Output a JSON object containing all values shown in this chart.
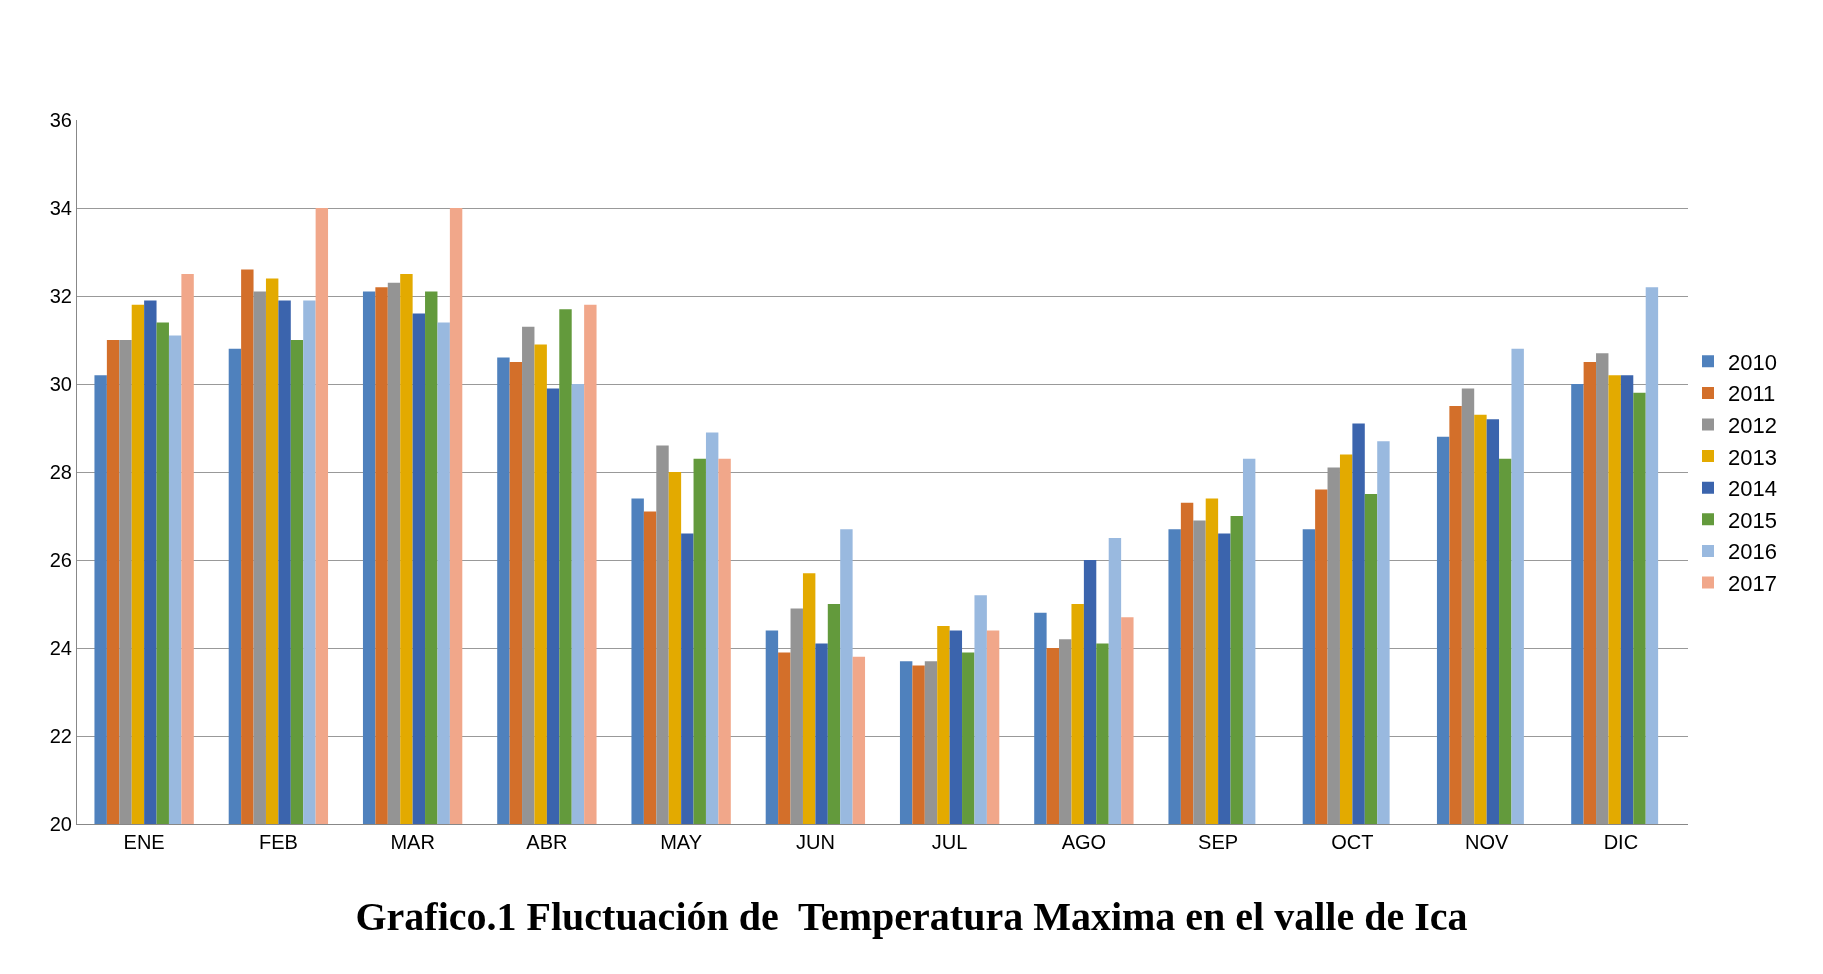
{
  "chart_data": {
    "type": "bar",
    "title": "Grafico.1 Fluctuación de  Temperatura Maxima en el valle de Ica",
    "categories": [
      "ENE",
      "FEB",
      "MAR",
      "ABR",
      "MAY",
      "JUN",
      "JUL",
      "AGO",
      "SEP",
      "OCT",
      "NOV",
      "DIC"
    ],
    "series": [
      {
        "name": "2010",
        "color": "#4f81bd",
        "values": [
          30.2,
          30.8,
          32.1,
          30.6,
          27.4,
          24.4,
          23.7,
          24.8,
          26.7,
          26.7,
          28.8,
          30.0
        ]
      },
      {
        "name": "2011",
        "color": "#d36f2a",
        "values": [
          31.0,
          32.6,
          32.2,
          30.5,
          27.1,
          23.9,
          23.6,
          24.0,
          27.3,
          27.6,
          29.5,
          30.5
        ]
      },
      {
        "name": "2012",
        "color": "#949494",
        "values": [
          31.0,
          32.1,
          32.3,
          31.3,
          28.6,
          24.9,
          23.7,
          24.2,
          26.9,
          28.1,
          29.9,
          30.7
        ]
      },
      {
        "name": "2013",
        "color": "#e3aa00",
        "values": [
          31.8,
          32.4,
          32.5,
          30.9,
          28.0,
          25.7,
          24.5,
          25.0,
          27.4,
          28.4,
          29.3,
          30.2
        ]
      },
      {
        "name": "2014",
        "color": "#3b64ad",
        "values": [
          31.9,
          31.9,
          31.6,
          29.9,
          26.6,
          24.1,
          24.4,
          26.0,
          26.6,
          29.1,
          29.2,
          30.2
        ]
      },
      {
        "name": "2015",
        "color": "#639a3c",
        "values": [
          31.4,
          31.0,
          32.1,
          31.7,
          28.3,
          25.0,
          23.9,
          24.1,
          27.0,
          27.5,
          28.3,
          29.8
        ]
      },
      {
        "name": "2016",
        "color": "#99b9df",
        "values": [
          31.1,
          31.9,
          31.4,
          30.0,
          28.9,
          26.7,
          25.2,
          26.5,
          28.3,
          28.7,
          30.8,
          32.2
        ]
      },
      {
        "name": "2017",
        "color": "#f1a78a",
        "values": [
          32.5,
          34.0,
          34.0,
          31.8,
          28.3,
          23.8,
          24.4,
          24.7,
          null,
          null,
          null,
          null
        ]
      }
    ],
    "ylim": [
      20,
      36
    ],
    "yticks": [
      20,
      22,
      24,
      26,
      28,
      30,
      32,
      34,
      36
    ],
    "grid": "y",
    "legend": "right"
  }
}
